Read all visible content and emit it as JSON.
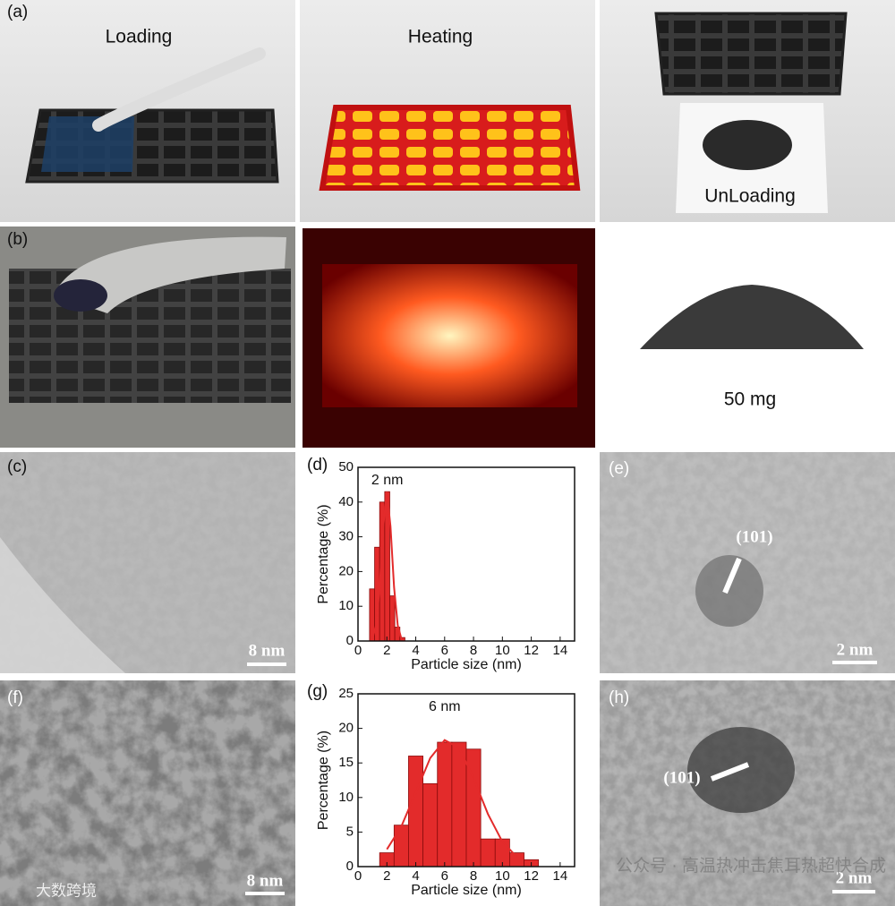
{
  "panels": {
    "a": {
      "label": "(a)",
      "steps": [
        "Loading",
        "Heating",
        "UnLoading"
      ]
    },
    "b": {
      "label": "(b)",
      "mass": "50 mg"
    },
    "c": {
      "label": "(c)",
      "scale_bar": "8 nm"
    },
    "e": {
      "label": "(e)",
      "plane": "(101)",
      "scale_bar": "2 nm"
    },
    "f": {
      "label": "(f)",
      "scale_bar": "8 nm"
    },
    "h": {
      "label": "(h)",
      "plane": "(101)",
      "scale_bar": "2 nm"
    }
  },
  "watermarks": [
    "大数跨境",
    "公众号 · 高温热冲击焦耳热超快合成"
  ],
  "chart_data": [
    {
      "type": "histogram",
      "panel_label": "(d)",
      "annotation": "2 nm",
      "x_label": "Particle size (nm)",
      "y_label": "Percentage (%)",
      "bins": [
        0.8,
        1.15,
        1.5,
        1.85,
        2.2,
        2.55,
        2.9,
        3.25
      ],
      "values": [
        15,
        27,
        40,
        43,
        13,
        4,
        1
      ],
      "color": "#e32b2b",
      "fit": {
        "x": [
          1.0,
          1.25,
          1.5,
          1.75,
          2.0,
          2.25,
          2.5,
          2.75,
          3.0
        ],
        "values": [
          0.7,
          4.5,
          15.5,
          33,
          43,
          33,
          15.5,
          4.5,
          0.7
        ]
      },
      "xlim": [
        0,
        15
      ],
      "ylim": [
        0,
        50
      ],
      "xticks": [
        0,
        2,
        4,
        6,
        8,
        10,
        12,
        14
      ],
      "yticks": [
        0,
        10,
        20,
        30,
        40,
        50
      ]
    },
    {
      "type": "histogram",
      "panel_label": "(g)",
      "annotation": "6 nm",
      "x_label": "Particle size (nm)",
      "y_label": "Percentage (%)",
      "bins": [
        1.5,
        2.5,
        3.5,
        4.5,
        5.5,
        6.5,
        7.5,
        8.5,
        9.5,
        10.5,
        11.5,
        12.5
      ],
      "values": [
        2,
        6,
        16,
        12,
        18,
        18,
        17,
        4,
        4,
        2,
        1
      ],
      "color": "#e32b2b",
      "fit": {
        "x": [
          2,
          3,
          4,
          5,
          6,
          7,
          8,
          9,
          10,
          11
        ],
        "values": [
          2.5,
          5.8,
          10.7,
          15.7,
          18.3,
          17.2,
          12.8,
          7.6,
          3.6,
          1.4
        ]
      },
      "xlim": [
        0,
        15
      ],
      "ylim": [
        0,
        25
      ],
      "xticks": [
        0,
        2,
        4,
        6,
        8,
        10,
        12,
        14
      ],
      "yticks": [
        0,
        5,
        10,
        15,
        20,
        25
      ]
    }
  ]
}
